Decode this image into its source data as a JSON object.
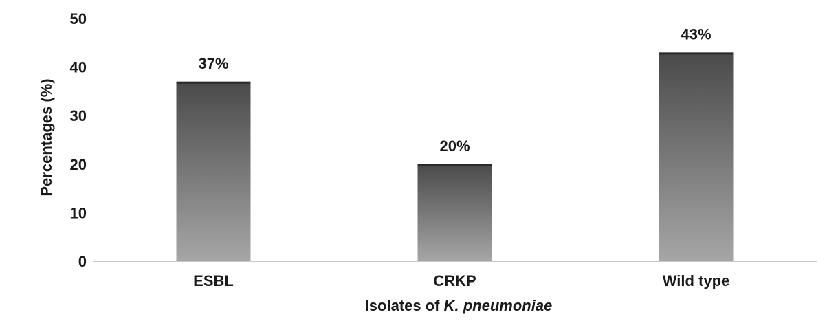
{
  "chart_data": {
    "type": "bar",
    "categories": [
      "ESBL",
      "CRKP",
      "Wild type"
    ],
    "values": [
      37,
      20,
      43
    ],
    "data_labels": [
      "37%",
      "20%",
      "43%"
    ],
    "xlabel": {
      "prefix": "Isolates of ",
      "italic": "K. pneumoniae"
    },
    "ylabel": "Percentages (%)",
    "ylim": [
      0,
      50
    ],
    "yticks": [
      0,
      10,
      20,
      30,
      40,
      50
    ],
    "grid": false,
    "legend": "none",
    "bar_color_top": "#4a4a4a",
    "bar_color_bottom": "#a6a6a6",
    "axis_color": "#c8c8c8"
  }
}
